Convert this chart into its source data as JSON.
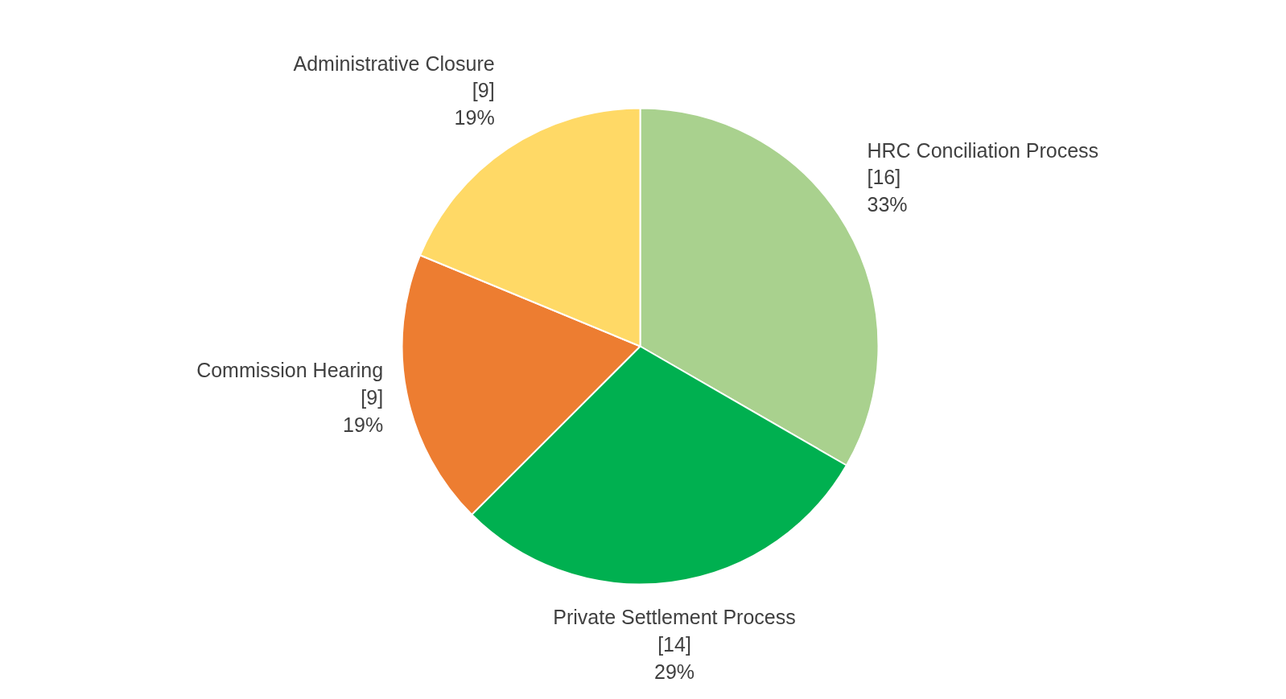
{
  "chart_data": {
    "type": "pie",
    "categories": [
      "HRC Conciliation Process",
      "Private Settlement Process",
      "Commission Hearing",
      "Administrative Closure"
    ],
    "values": [
      16,
      14,
      9,
      9
    ],
    "colors": [
      "#a9d18e",
      "#00b050",
      "#ed7d31",
      "#ffd966"
    ],
    "value_labels": [
      "[16]\n33%",
      "[14]\n29%",
      "[9]\n19%",
      "[9]\n19%"
    ]
  }
}
